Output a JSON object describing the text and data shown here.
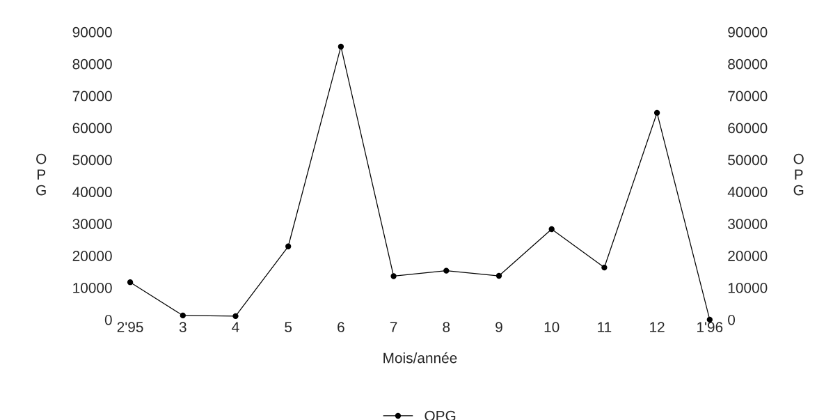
{
  "chart_data": {
    "type": "line",
    "xlabel": "Mois/année",
    "ylabel": "O\nP\nG",
    "y2label": "O\nP\nG",
    "categories": [
      "2'95",
      "3",
      "4",
      "5",
      "6",
      "7",
      "8",
      "9",
      "10",
      "11",
      "12",
      "1'96"
    ],
    "series": [
      {
        "name": "OPG",
        "color": "#000000",
        "values": [
          11700,
          1300,
          1100,
          22900,
          85400,
          13600,
          15300,
          13700,
          28300,
          16300,
          64700,
          0
        ]
      }
    ],
    "ylim": [
      0,
      90000
    ],
    "yticks": [
      0,
      10000,
      20000,
      30000,
      40000,
      50000,
      60000,
      70000,
      80000,
      90000
    ],
    "y2lim": [
      0,
      90000
    ],
    "y2ticks": [
      0,
      10000,
      20000,
      30000,
      40000,
      50000,
      60000,
      70000,
      80000,
      90000
    ],
    "marker": "circle",
    "line_style": "solid",
    "grid": false,
    "legend": "bottom"
  }
}
